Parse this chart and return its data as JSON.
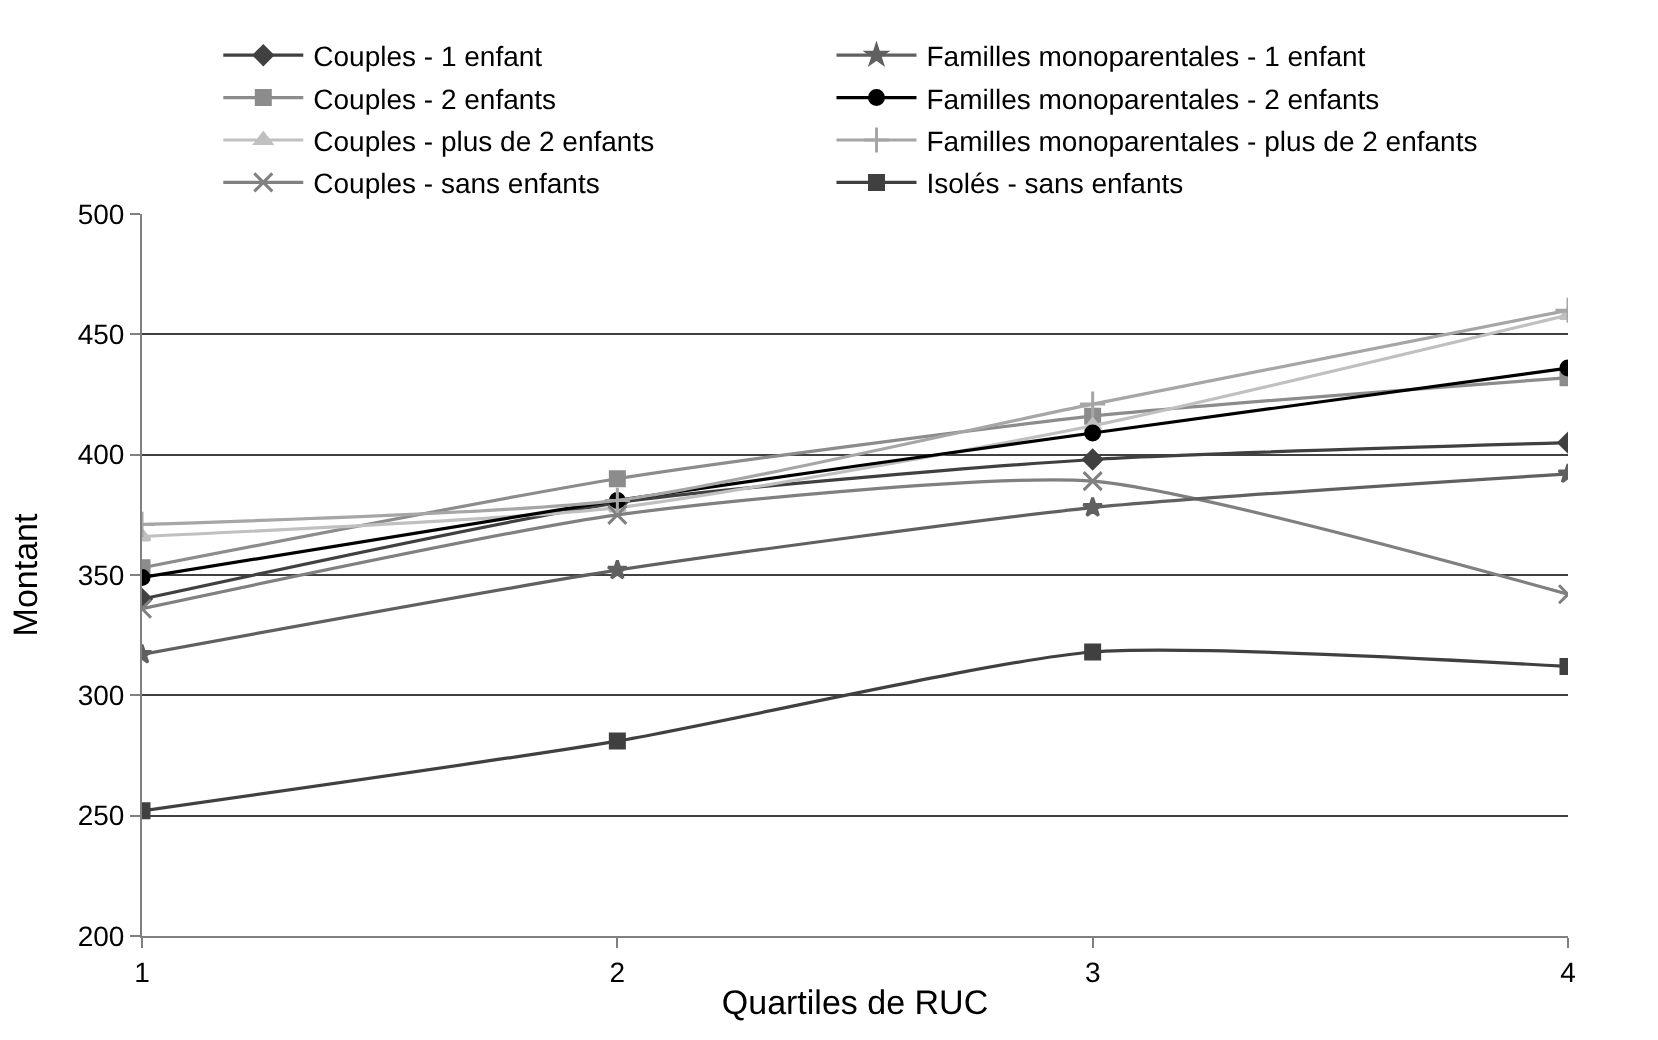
{
  "chart_data": {
    "type": "line",
    "xlabel": "Quartiles de RUC",
    "ylabel": "Montant",
    "x": [
      1,
      2,
      3,
      4
    ],
    "xlim": [
      1,
      4
    ],
    "xticks": [
      1,
      2,
      3,
      4
    ],
    "ylim": [
      200,
      500
    ],
    "yticks": [
      200,
      250,
      300,
      350,
      400,
      450,
      500
    ],
    "grid": "y",
    "legend": "top",
    "line_style": "solid",
    "series": [
      {
        "name": "Couples - 1 enfant",
        "color": "#404040",
        "marker": "diamond",
        "values": [
          340,
          380,
          398,
          405
        ]
      },
      {
        "name": "Couples - 2 enfants",
        "color": "#8c8c8c",
        "marker": "square",
        "values": [
          353,
          390,
          416,
          432
        ]
      },
      {
        "name": "Couples - plus de 2 enfants",
        "color": "#c0c0c0",
        "marker": "triangle",
        "values": [
          366,
          378,
          412,
          458
        ]
      },
      {
        "name": "Couples - sans enfants",
        "color": "#808080",
        "marker": "x",
        "values": [
          336,
          375,
          389,
          342
        ]
      },
      {
        "name": "Familles monoparentales - 1 enfant",
        "color": "#606060",
        "marker": "star",
        "values": [
          317,
          352,
          378,
          392
        ]
      },
      {
        "name": "Familles monoparentales - 2 enfants",
        "color": "#000000",
        "marker": "circle",
        "values": [
          349,
          381,
          409,
          436
        ]
      },
      {
        "name": "Familles monoparentales - plus de 2 enfants",
        "color": "#a6a6a6",
        "marker": "cross",
        "values": [
          371,
          381,
          421,
          460
        ]
      },
      {
        "name": "Isolés - sans enfants",
        "color": "#404040",
        "marker": "square",
        "values": [
          252,
          281,
          318,
          312
        ]
      }
    ]
  }
}
